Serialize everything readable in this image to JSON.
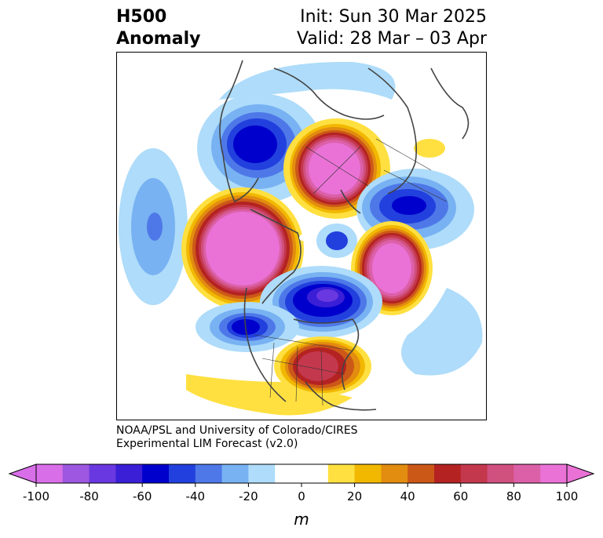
{
  "title": {
    "left_line1": "H500",
    "left_line2": "Anomaly",
    "right_line1": "Init: Sun 30 Mar 2025",
    "right_line2": "Valid: 28 Mar – 03 Apr"
  },
  "credit": {
    "line1": "NOAA/PSL and University of Colorado/CIRES",
    "line2": "Experimental LIM Forecast (v2.0)"
  },
  "colorbar": {
    "unit": "m",
    "ticks": [
      "-100",
      "-80",
      "-60",
      "-40",
      "-20",
      "0",
      "20",
      "40",
      "60",
      "80",
      "100"
    ],
    "colors": [
      "#d86ee8",
      "#9d57e0",
      "#6a38e0",
      "#3a1fd6",
      "#0000cc",
      "#2240dd",
      "#4e78e8",
      "#78b2f2",
      "#aedcfa",
      "#ffffff",
      "#ffffff",
      "#ffe040",
      "#f2b800",
      "#e28c10",
      "#cc5818",
      "#b42222",
      "#c4384e",
      "#d0507e",
      "#dc60a8",
      "#ea72d6"
    ]
  },
  "map": {
    "anomalies": [
      {
        "name": "north-pacific-ridge",
        "sign": "positive",
        "peak_m": 100
      },
      {
        "name": "arctic-ridge",
        "sign": "positive",
        "peak_m": 100
      },
      {
        "name": "north-atlantic-ridge",
        "sign": "positive",
        "peak_m": 100
      },
      {
        "name": "southeast-us-ridge",
        "sign": "positive",
        "peak_m": 65
      },
      {
        "name": "siberian-trough",
        "sign": "negative",
        "peak_m": -70
      },
      {
        "name": "hudson-bay-trough",
        "sign": "negative",
        "peak_m": -65
      },
      {
        "name": "scandinavian-trough",
        "sign": "negative",
        "peak_m": -60
      },
      {
        "name": "western-us-trough",
        "sign": "negative",
        "peak_m": -60
      },
      {
        "name": "dateline-trough",
        "sign": "negative",
        "peak_m": -40
      }
    ]
  }
}
